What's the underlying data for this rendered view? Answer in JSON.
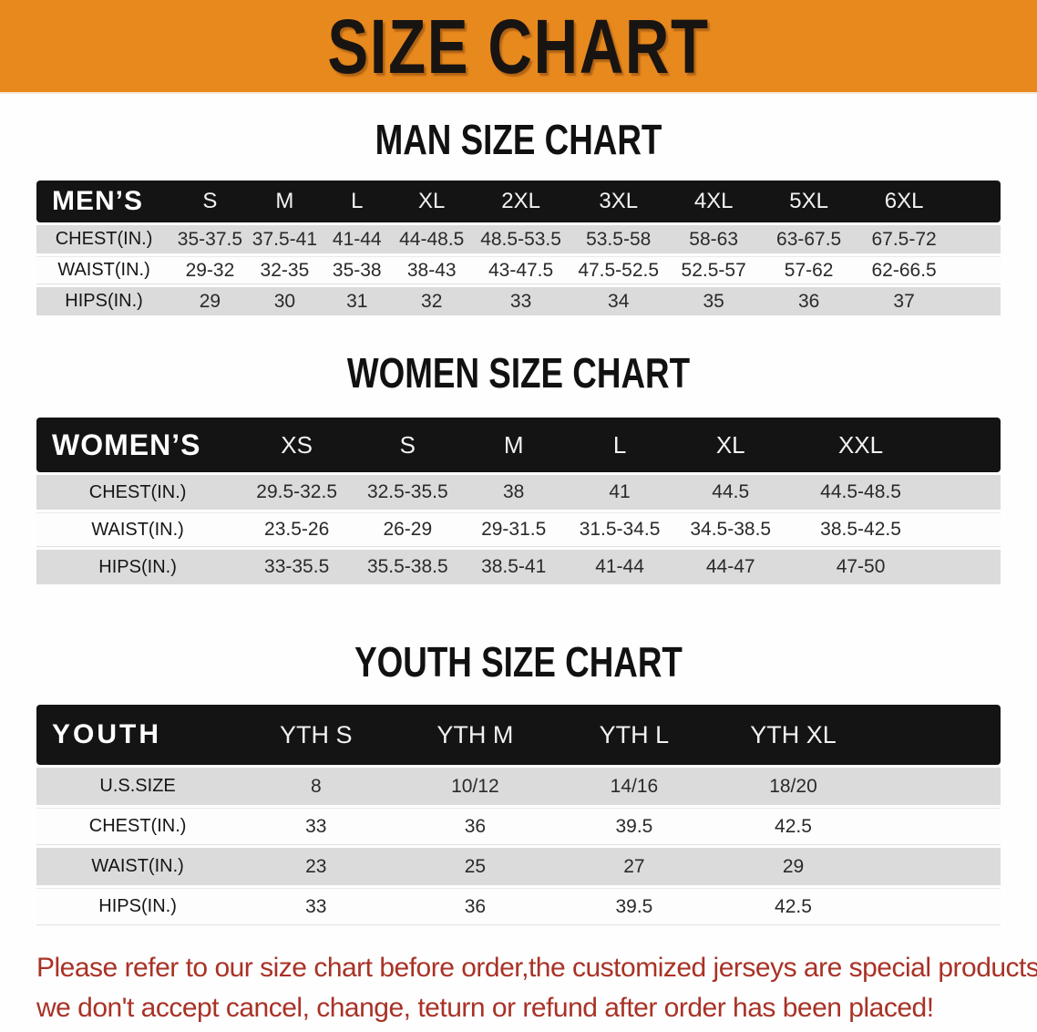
{
  "banner": {
    "title": "SIZE CHART"
  },
  "colors": {
    "banner_bg": "#E8891E",
    "table_header_bg": "#141414",
    "row_shaded_bg": "#DBDBDB",
    "footer_text": "#A93226"
  },
  "man": {
    "heading": "MAN SIZE CHART",
    "label": "MEN’S",
    "columns": [
      "S",
      "M",
      "L",
      "XL",
      "2XL",
      "3XL",
      "4XL",
      "5XL",
      "6XL"
    ],
    "rows": [
      {
        "label": "CHEST(IN.)",
        "values": [
          "35-37.5",
          "37.5-41",
          "41-44",
          "44-48.5",
          "48.5-53.5",
          "53.5-58",
          "58-63",
          "63-67.5",
          "67.5-72"
        ]
      },
      {
        "label": "WAIST(IN.)",
        "values": [
          "29-32",
          "32-35",
          "35-38",
          "38-43",
          "43-47.5",
          "47.5-52.5",
          "52.5-57",
          "57-62",
          "62-66.5"
        ]
      },
      {
        "label": "HIPS(IN.)",
        "values": [
          "29",
          "30",
          "31",
          "32",
          "33",
          "34",
          "35",
          "36",
          "37"
        ]
      }
    ]
  },
  "women": {
    "heading": "WOMEN SIZE CHART",
    "label": "WOMEN’S",
    "columns": [
      "XS",
      "S",
      "M",
      "L",
      "XL",
      "XXL"
    ],
    "rows": [
      {
        "label": "CHEST(IN.)",
        "values": [
          "29.5-32.5",
          "32.5-35.5",
          "38",
          "41",
          "44.5",
          "44.5-48.5"
        ]
      },
      {
        "label": "WAIST(IN.)",
        "values": [
          "23.5-26",
          "26-29",
          "29-31.5",
          "31.5-34.5",
          "34.5-38.5",
          "38.5-42.5"
        ]
      },
      {
        "label": "HIPS(IN.)",
        "values": [
          "33-35.5",
          "35.5-38.5",
          "38.5-41",
          "41-44",
          "44-47",
          "47-50"
        ]
      }
    ]
  },
  "youth": {
    "heading": "YOUTH SIZE CHART",
    "label": "YOUTH",
    "columns": [
      "YTH S",
      "YTH M",
      "YTH L",
      "YTH XL"
    ],
    "rows": [
      {
        "label": "U.S.SIZE",
        "values": [
          "8",
          "10/12",
          "14/16",
          "18/20"
        ]
      },
      {
        "label": "CHEST(IN.)",
        "values": [
          "33",
          "36",
          "39.5",
          "42.5"
        ]
      },
      {
        "label": "WAIST(IN.)",
        "values": [
          "23",
          "25",
          "27",
          "29"
        ]
      },
      {
        "label": "HIPS(IN.)",
        "values": [
          "33",
          "36",
          "39.5",
          "42.5"
        ]
      }
    ]
  },
  "footer": {
    "line1": "Please refer to our size chart before order,the customized jerseys are special products,",
    "line2": "we don't accept cancel, change, teturn or refund after order has been placed!"
  }
}
